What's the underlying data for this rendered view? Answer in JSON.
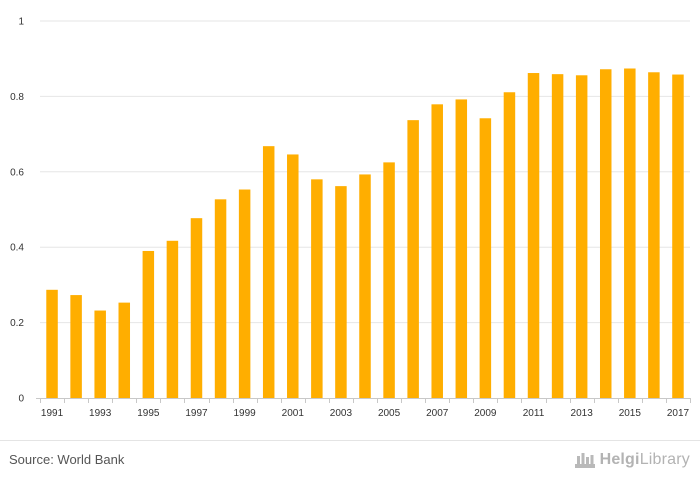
{
  "chart_data": {
    "type": "bar",
    "categories": [
      "1991",
      "1992",
      "1993",
      "1994",
      "1995",
      "1996",
      "1997",
      "1998",
      "1999",
      "2000",
      "2001",
      "2002",
      "2003",
      "2004",
      "2005",
      "2006",
      "2007",
      "2008",
      "2009",
      "2010",
      "2011",
      "2012",
      "2013",
      "2014",
      "2015",
      "2016",
      "2017"
    ],
    "values": [
      0.287,
      0.273,
      0.232,
      0.253,
      0.39,
      0.417,
      0.477,
      0.527,
      0.553,
      0.668,
      0.646,
      0.58,
      0.562,
      0.593,
      0.625,
      0.737,
      0.779,
      0.792,
      0.742,
      0.811,
      0.862,
      0.859,
      0.856,
      0.872,
      0.874,
      0.864,
      0.858
    ],
    "x_tick_labels": [
      "1991",
      "1993",
      "1995",
      "1997",
      "1999",
      "2001",
      "2003",
      "2005",
      "2007",
      "2009",
      "2011",
      "2013",
      "2015",
      "2017"
    ],
    "y_ticks": [
      0,
      0.2,
      0.4,
      0.6,
      0.8,
      1
    ],
    "y_tick_labels": [
      "0",
      "0.2",
      "0.4",
      "0.6",
      "0.8",
      "1"
    ],
    "ylim": [
      0,
      1
    ],
    "grid": true,
    "bar_color": "#ffae00",
    "grid_color": "#e6e6e6",
    "title": "",
    "xlabel": "",
    "ylabel": ""
  },
  "footer": {
    "source": "Source: World Bank",
    "brand_name_bold": "Helgi",
    "brand_name_rest": "Library",
    "brand_icon": "helgi-library-logo-icon"
  }
}
